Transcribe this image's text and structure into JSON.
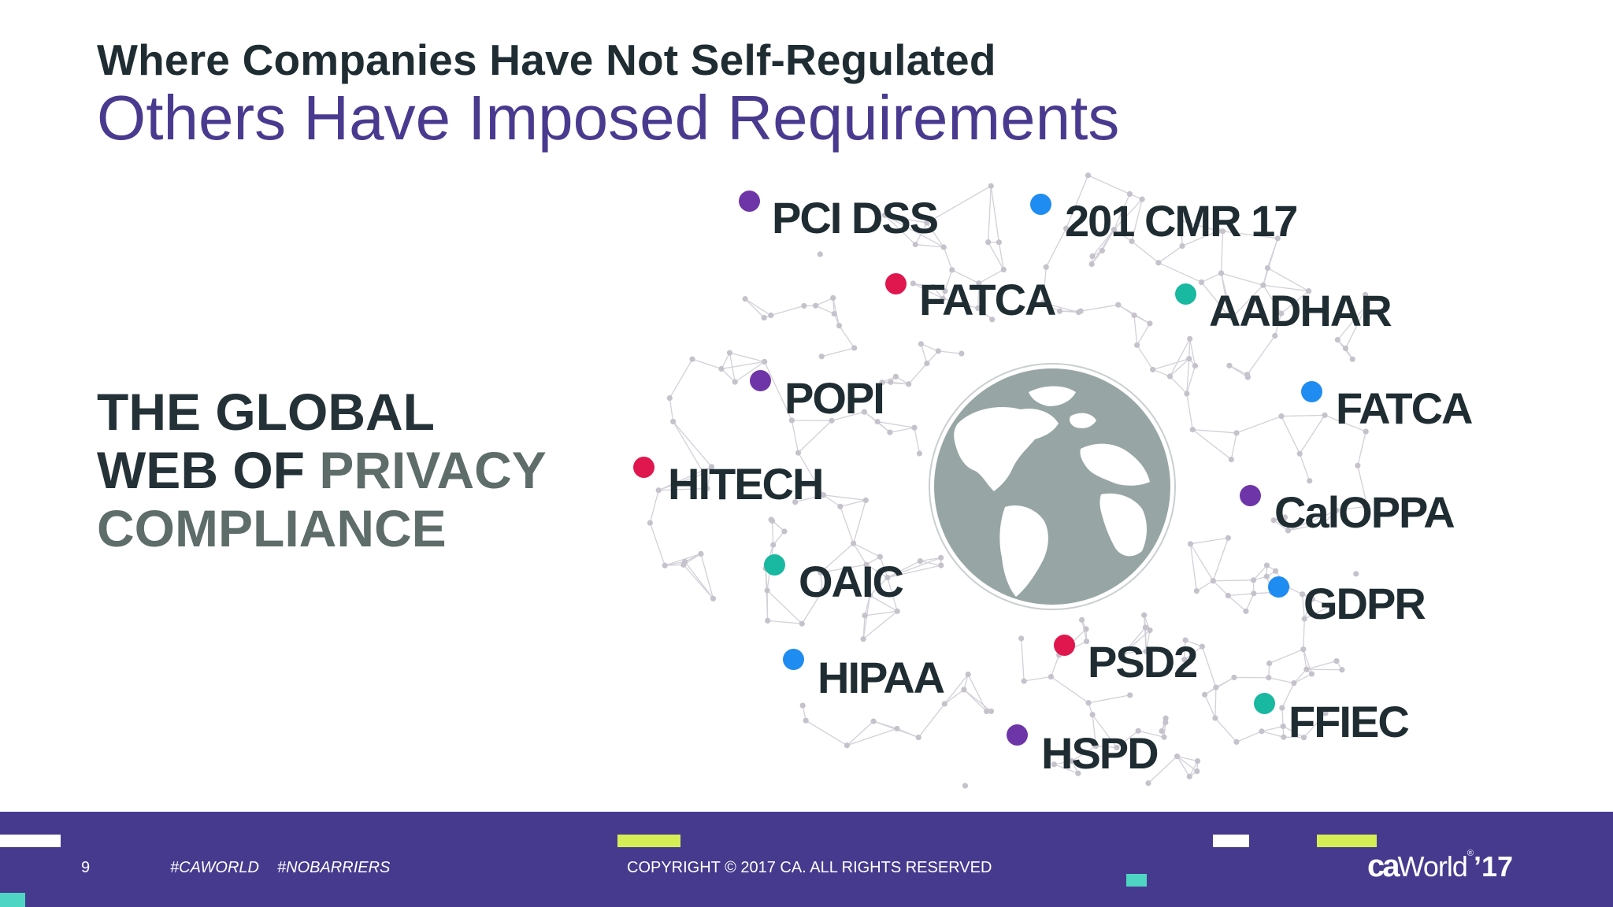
{
  "header": {
    "kicker": "Where Companies Have Not Self-Regulated",
    "title": "Others Have Imposed Requirements"
  },
  "headline": {
    "line1": "THE GLOBAL",
    "line2_dark": "WEB OF",
    "line2_muted": "PRIVACY",
    "line3": "COMPLIANCE"
  },
  "colors": {
    "purple": "#6e35a8",
    "blue": "#1e8cf0",
    "red": "#e0174f",
    "teal": "#19b8a0",
    "globe": "#97a6a4",
    "footer": "#463a8e",
    "title": "#4a3a8f"
  },
  "regulations": [
    {
      "id": "pci-dss",
      "label": "PCI DSS",
      "color": "purple"
    },
    {
      "id": "201-cmr-17",
      "label": "201 CMR 17",
      "color": "blue"
    },
    {
      "id": "fatca-1",
      "label": "FATCA",
      "color": "red"
    },
    {
      "id": "aadhar",
      "label": "AADHAR",
      "color": "teal"
    },
    {
      "id": "popi",
      "label": "POPI",
      "color": "purple"
    },
    {
      "id": "fatca-2",
      "label": "FATCA",
      "color": "blue"
    },
    {
      "id": "hitech",
      "label": "HITECH",
      "color": "red"
    },
    {
      "id": "caloppa",
      "label": "CalOPPA",
      "color": "purple"
    },
    {
      "id": "oaic",
      "label": "OAIC",
      "color": "teal"
    },
    {
      "id": "gdpr",
      "label": "GDPR",
      "color": "blue"
    },
    {
      "id": "psd2",
      "label": "PSD2",
      "color": "red"
    },
    {
      "id": "hipaa",
      "label": "HIPAA",
      "color": "blue"
    },
    {
      "id": "ffiec",
      "label": "FFIEC",
      "color": "teal"
    },
    {
      "id": "hspd",
      "label": "HSPD",
      "color": "purple"
    }
  ],
  "footer": {
    "page_number": "9",
    "hashtag1": "#CAWORLD",
    "hashtag2": "#NOBARRIERS",
    "copyright": "COPYRIGHT © 2017 CA. ALL RIGHTS RESERVED",
    "logo_ca": "ca",
    "logo_world": "World",
    "logo_year": "’17"
  }
}
